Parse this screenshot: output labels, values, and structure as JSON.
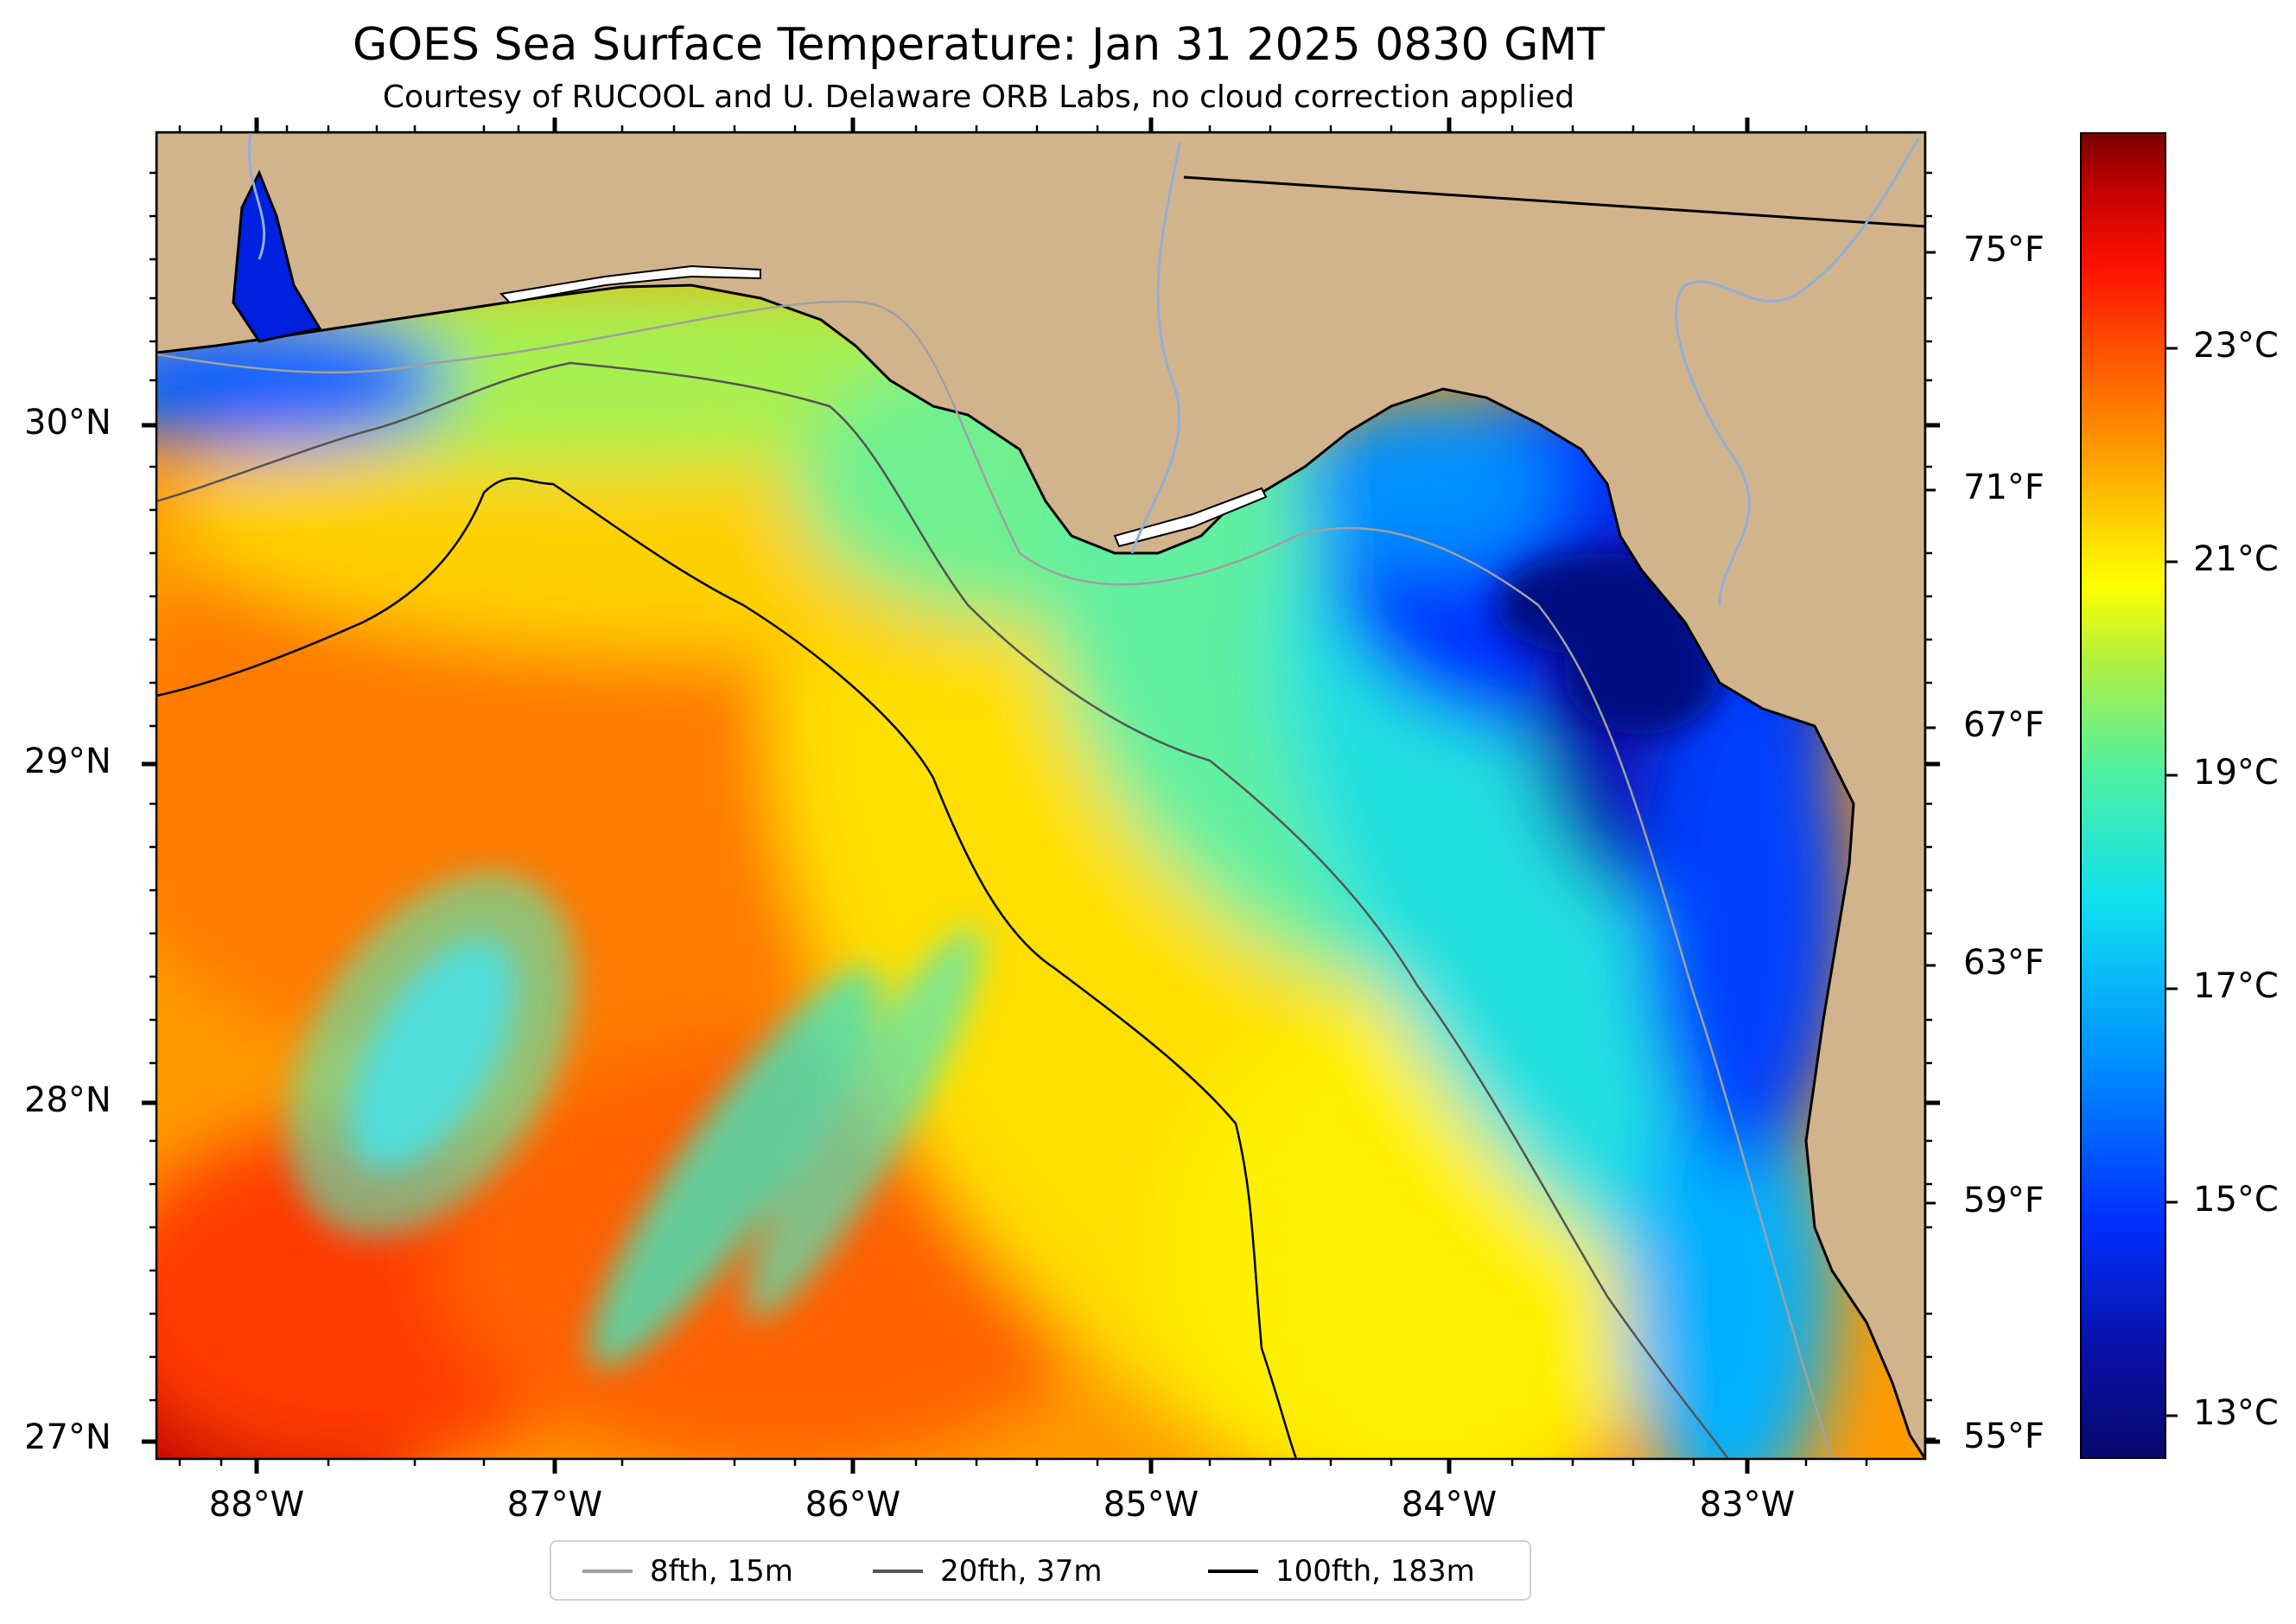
{
  "title": "GOES Sea Surface Temperature: Jan 31 2025 0830 GMT",
  "subtitle": "Courtesy of RUCOOL and U. Delaware ORB Labs, no cloud correction applied",
  "axes": {
    "lon_labels": [
      "88°W",
      "87°W",
      "86°W",
      "85°W",
      "84°W",
      "83°W"
    ],
    "lat_labels": [
      "30°N",
      "29°N",
      "28°N",
      "27°N"
    ]
  },
  "colorbar": {
    "fahrenheit_labels": [
      "75°F",
      "71°F",
      "67°F",
      "63°F",
      "59°F",
      "55°F"
    ],
    "celsius_labels": [
      "23°C",
      "21°C",
      "19°C",
      "17°C",
      "15°C",
      "13°C"
    ],
    "colormap": "jet"
  },
  "legend": {
    "items": [
      {
        "label": "8fth, 15m",
        "color": "#a0a0a0"
      },
      {
        "label": "20fth, 37m",
        "color": "#555555"
      },
      {
        "label": "100fth, 183m",
        "color": "#000000"
      }
    ]
  },
  "colors": {
    "land": "#d2b48c",
    "coastline": "#000000",
    "rivers": "#8fb0d8"
  }
}
